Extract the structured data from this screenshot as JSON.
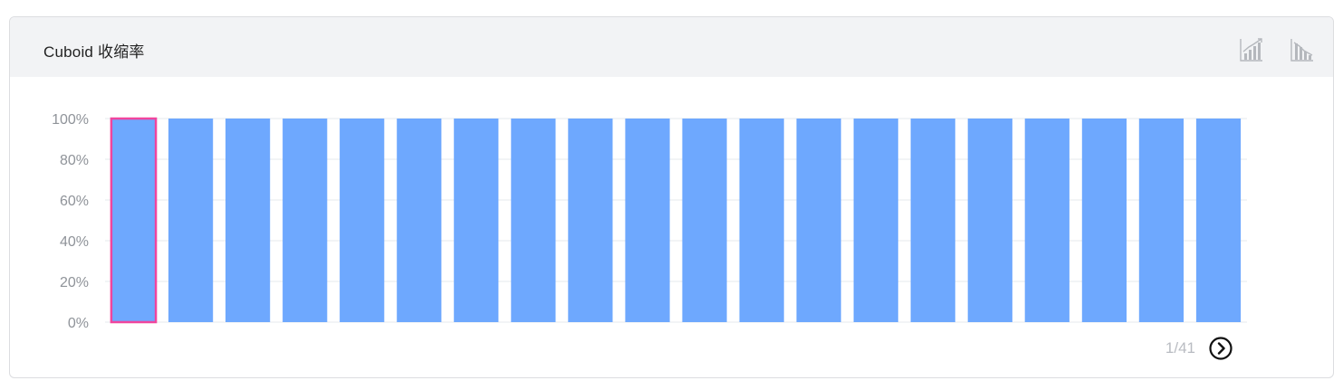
{
  "card": {
    "title": "Cuboid 收缩率",
    "icons": [
      "bar-chart-rising-icon",
      "bar-chart-falling-icon"
    ]
  },
  "chart_data": {
    "type": "bar",
    "title": "Cuboid 收缩率",
    "xlabel": "",
    "ylabel": "",
    "ylim": [
      0,
      100
    ],
    "y_ticks": [
      "0%",
      "20%",
      "40%",
      "60%",
      "80%",
      "100%"
    ],
    "y_tick_values": [
      0,
      20,
      40,
      60,
      80,
      100
    ],
    "values": [
      100,
      100,
      100,
      100,
      100,
      100,
      100,
      100,
      100,
      100,
      100,
      100,
      100,
      100,
      100,
      100,
      100,
      100,
      100,
      100
    ],
    "selected_index": 0,
    "grid": true,
    "colors": {
      "bar": "#6ea8fe",
      "selected_border": "#f0459e",
      "grid": "#e6e8ec",
      "tick_text": "#8f9399"
    }
  },
  "pager": {
    "label": "1/41"
  }
}
